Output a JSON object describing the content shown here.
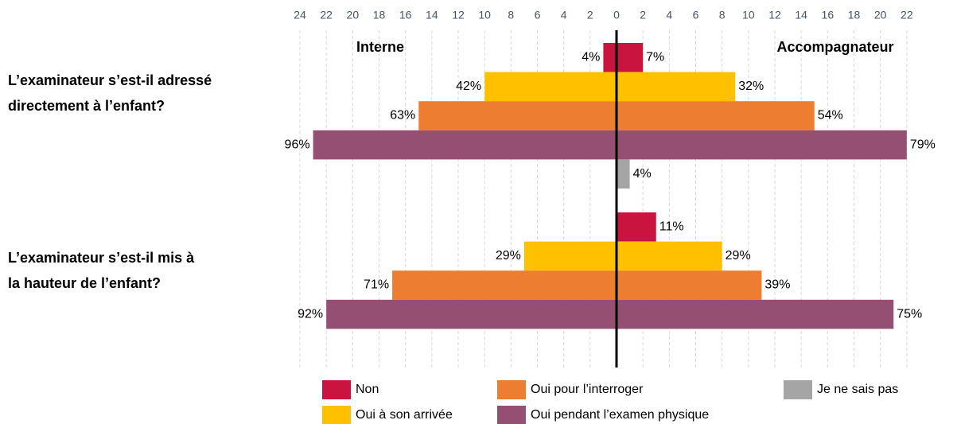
{
  "chart_data": {
    "type": "butterfly",
    "categories": [
      [
        "L’examinateur s’est-il adressé",
        "directement à l’enfant?"
      ],
      [
        "L’examinateur s’est-il mis à",
        "la hauteur de l’enfant?"
      ]
    ],
    "left_title": "Interne",
    "right_title": "Accompagnateur",
    "xlim": [
      -24,
      24
    ],
    "xticks": [
      {
        "value": -24,
        "label": "24"
      },
      {
        "value": -22,
        "label": "22"
      },
      {
        "value": -20,
        "label": "20"
      },
      {
        "value": -18,
        "label": "18"
      },
      {
        "value": -16,
        "label": "16"
      },
      {
        "value": -14,
        "label": "14"
      },
      {
        "value": -12,
        "label": "12"
      },
      {
        "value": -10,
        "label": "10"
      },
      {
        "value": -8,
        "label": "8"
      },
      {
        "value": -6,
        "label": "6"
      },
      {
        "value": -4,
        "label": "4"
      },
      {
        "value": -2,
        "label": "2"
      },
      0,
      2,
      4,
      6,
      8,
      10,
      12,
      14,
      16,
      18,
      20,
      22
    ],
    "grid": true,
    "series": [
      {
        "name": "Non",
        "color": "#c8143f",
        "interne": [
          1,
          null
        ],
        "interne_labels": [
          "4%",
          null
        ],
        "accompagnateur": [
          2,
          3
        ],
        "accompagnateur_labels": [
          "7%",
          "11%"
        ]
      },
      {
        "name": "Oui à son arrivée",
        "color": "#ffc000",
        "interne": [
          10,
          7
        ],
        "interne_labels": [
          "42%",
          "29%"
        ],
        "accompagnateur": [
          9,
          8
        ],
        "accompagnateur_labels": [
          "32%",
          "29%"
        ]
      },
      {
        "name": "Oui pour l’interroger",
        "color": "#ed7d31",
        "interne": [
          15,
          17
        ],
        "interne_labels": [
          "63%",
          "71%"
        ],
        "accompagnateur": [
          15,
          11
        ],
        "accompagnateur_labels": [
          "54%",
          "39%"
        ]
      },
      {
        "name": "Oui pendant l’examen physique",
        "color": "#954f72",
        "interne": [
          23,
          22
        ],
        "interne_labels": [
          "96%",
          "92%"
        ],
        "accompagnateur": [
          22,
          21
        ],
        "accompagnateur_labels": [
          "79%",
          "75%"
        ]
      },
      {
        "name": "Je ne sais pas",
        "color": "#a5a5a5",
        "interne": [
          null,
          null
        ],
        "interne_labels": [
          null,
          null
        ],
        "accompagnateur": [
          1,
          null
        ],
        "accompagnateur_labels": [
          "4%",
          null
        ]
      }
    ]
  }
}
